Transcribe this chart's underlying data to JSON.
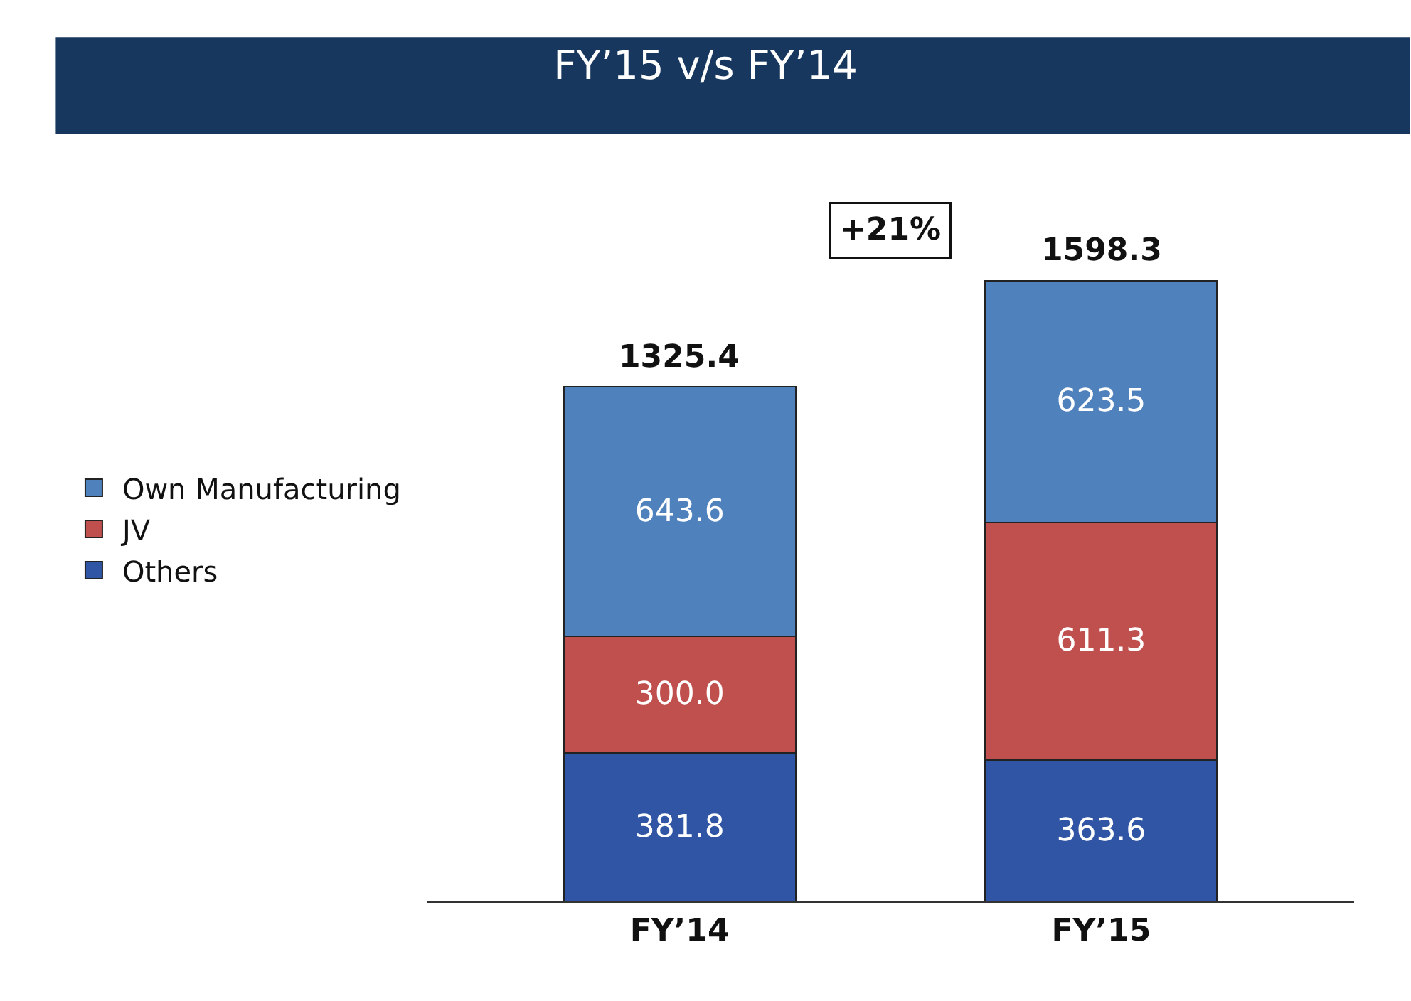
{
  "chart_data": {
    "type": "bar",
    "title": "FY’15 v/s FY’14",
    "stacked": true,
    "legend": "left",
    "categories": [
      "FY’14",
      "FY’15"
    ],
    "series": [
      {
        "name": "Others",
        "color": "#2f55a4",
        "values": [
          381.8,
          363.6
        ],
        "value_labels": [
          "381.8",
          "363.6"
        ]
      },
      {
        "name": "JV",
        "color": "#c0504d",
        "values": [
          300.0,
          611.3
        ],
        "value_labels": [
          "300.0",
          "611.3"
        ]
      },
      {
        "name": "Own Manufacturing",
        "color": "#4f81bd",
        "values": [
          643.6,
          623.5
        ],
        "value_labels": [
          "643.6",
          "623.5"
        ]
      }
    ],
    "totals": [
      "1325.4",
      "1598.3"
    ],
    "annotations": [
      "+21%"
    ]
  }
}
